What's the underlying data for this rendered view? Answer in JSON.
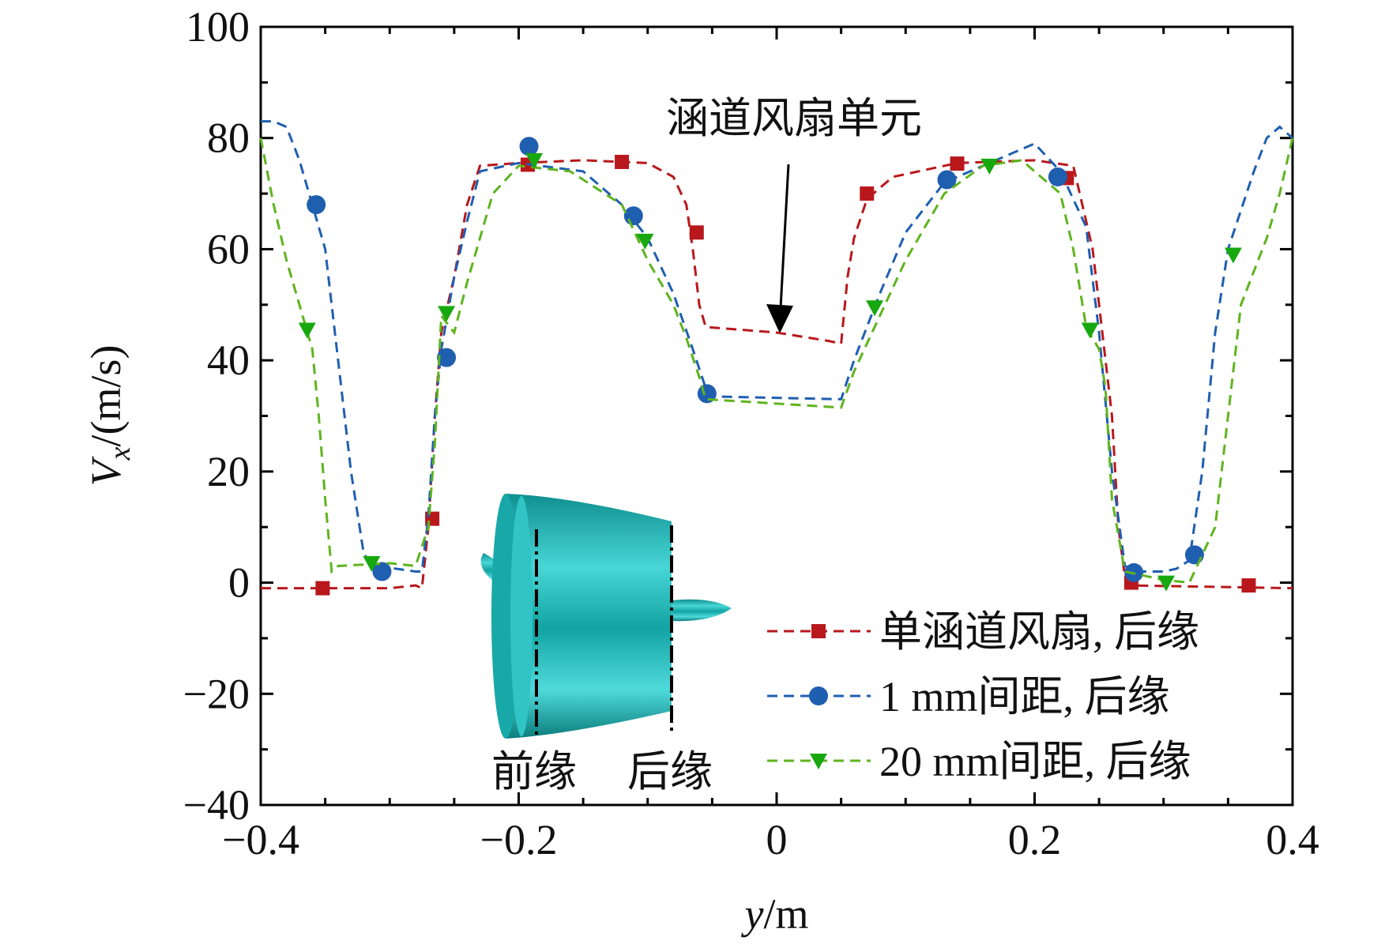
{
  "chart_data": {
    "type": "line",
    "ylabel_parts": [
      "V",
      "x",
      "/(m/s)"
    ],
    "xlabel_parts": [
      "y",
      "/m"
    ],
    "annotation": "涵道风扇单元",
    "inset_labels": [
      "前缘",
      "后缘"
    ],
    "xlim": [
      -0.4,
      0.4
    ],
    "ylim": [
      -40,
      100
    ],
    "xticks": [
      {
        "value": -0.4,
        "label": "−0.4"
      },
      {
        "value": -0.2,
        "label": "−0.2"
      },
      0,
      0.2,
      0.4
    ],
    "yticks": [
      {
        "value": -40,
        "label": "−40"
      },
      {
        "value": -20,
        "label": "−20"
      },
      0,
      20,
      40,
      60,
      80,
      100
    ],
    "xminorticks": [
      -0.35,
      -0.3,
      -0.25,
      -0.15,
      -0.1,
      -0.05,
      0.05,
      0.1,
      0.15,
      0.25,
      0.3,
      0.35
    ],
    "yminorticks": [
      -30,
      -10,
      10,
      30,
      50,
      70,
      90
    ],
    "legend_position": "lower right",
    "series": [
      {
        "name": "单涵道风扇, 后缘",
        "color": "#b8181c",
        "marker": "square",
        "x": [
          -0.4,
          -0.3,
          -0.28,
          -0.275,
          -0.27,
          -0.265,
          -0.26,
          -0.25,
          -0.24,
          -0.23,
          -0.2,
          -0.15,
          -0.1,
          -0.08,
          -0.07,
          -0.065,
          -0.06,
          -0.055,
          0,
          0.04,
          0.05,
          0.055,
          0.06,
          0.07,
          0.09,
          0.14,
          0.2,
          0.23,
          0.245,
          0.25,
          0.26,
          0.265,
          0.27,
          0.275,
          0.4
        ],
        "values": [
          -1,
          -1,
          -0.5,
          -1,
          10,
          30,
          45,
          55,
          68,
          75,
          75.5,
          76,
          75.5,
          73,
          68,
          60,
          50,
          46,
          45,
          43.5,
          43,
          55,
          62,
          69,
          73,
          75.5,
          76,
          75,
          60,
          50,
          30,
          10,
          1,
          -0.5,
          -1
        ],
        "marker_x": [
          -0.352,
          -0.267,
          -0.193,
          -0.12,
          -0.062,
          0.07,
          0.14,
          0.225,
          0.275,
          0.366
        ],
        "marker_values": [
          -1,
          11.5,
          75.2,
          75.7,
          63,
          70,
          75.4,
          72.8,
          0,
          -0.5
        ]
      },
      {
        "name": "1 mm间距, 后缘",
        "color": "#1f5fb0",
        "marker": "circle",
        "x": [
          -0.4,
          -0.39,
          -0.38,
          -0.37,
          -0.36,
          -0.35,
          -0.34,
          -0.33,
          -0.32,
          -0.31,
          -0.28,
          -0.275,
          -0.27,
          -0.265,
          -0.26,
          -0.25,
          -0.24,
          -0.23,
          -0.2,
          -0.15,
          -0.12,
          -0.1,
          -0.08,
          -0.065,
          -0.055,
          -0.05,
          0.05,
          0.06,
          0.08,
          0.1,
          0.13,
          0.17,
          0.2,
          0.22,
          0.24,
          0.25,
          0.26,
          0.27,
          0.28,
          0.3,
          0.31,
          0.32,
          0.33,
          0.34,
          0.35,
          0.37,
          0.38,
          0.39,
          0.4
        ],
        "values": [
          83,
          83,
          82,
          76,
          68,
          60,
          40,
          20,
          5,
          3,
          2,
          2,
          12,
          30,
          42,
          55,
          65,
          74,
          75.5,
          74,
          68,
          62,
          52,
          42,
          35,
          33.5,
          33,
          40,
          52,
          63,
          72,
          76,
          79,
          74,
          64,
          45,
          20,
          3,
          2,
          2,
          2.5,
          4,
          20,
          45,
          60,
          74,
          80,
          82,
          80
        ],
        "marker_x": [
          -0.357,
          -0.306,
          -0.256,
          -0.192,
          -0.111,
          -0.054,
          0.132,
          0.218,
          0.277,
          0.324
        ],
        "marker_values": [
          68,
          2,
          40.5,
          78.5,
          66,
          34,
          72.5,
          73,
          1.8,
          5
        ]
      },
      {
        "name": "20 mm间距, 后缘",
        "color": "#5fb41e",
        "marker": "triangle",
        "x": [
          -0.4,
          -0.39,
          -0.38,
          -0.37,
          -0.36,
          -0.355,
          -0.35,
          -0.345,
          -0.34,
          -0.3,
          -0.28,
          -0.27,
          -0.265,
          -0.26,
          -0.25,
          -0.24,
          -0.23,
          -0.22,
          -0.2,
          -0.16,
          -0.12,
          -0.1,
          -0.08,
          -0.07,
          -0.06,
          -0.055,
          0.05,
          0.06,
          0.08,
          0.1,
          0.13,
          0.16,
          0.19,
          0.22,
          0.23,
          0.24,
          0.25,
          0.255,
          0.26,
          0.27,
          0.3,
          0.32,
          0.34,
          0.35,
          0.36,
          0.38,
          0.39,
          0.4
        ],
        "values": [
          80,
          68,
          58,
          50,
          42,
          30,
          15,
          2,
          3,
          3.5,
          3,
          10,
          25,
          48,
          45,
          54,
          62,
          70,
          75,
          74,
          68,
          58,
          50,
          44,
          37,
          33,
          31.5,
          38,
          48,
          58,
          70,
          75,
          76,
          70,
          60,
          46,
          42,
          35,
          15,
          2,
          0.5,
          0,
          10,
          30,
          50,
          62,
          70,
          80
        ],
        "marker_x": [
          -0.364,
          -0.314,
          -0.256,
          -0.188,
          -0.102,
          0.076,
          0.165,
          0.243,
          0.302,
          0.354
        ],
        "marker_values": [
          45.5,
          3.5,
          48.5,
          76,
          61.5,
          49.5,
          75,
          45.5,
          0,
          59
        ]
      }
    ]
  }
}
